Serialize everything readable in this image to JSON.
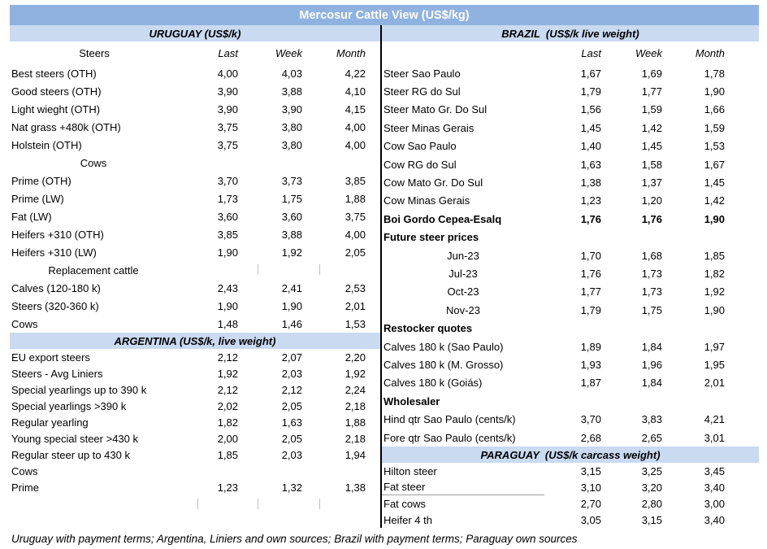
{
  "title": "Mercosur Cattle View (US$/kg)",
  "colors": {
    "title_bar": "#8FB2E0",
    "section_band": "#C9DAF1",
    "divider": "#000000",
    "title_text": "#FFFFFF"
  },
  "footer_note": "Uruguay with payment terms; Argentina, Liniers and own sources; Brazil with payment terms; Paraguay own sources",
  "left_column": [
    {
      "t": "band",
      "label": "URUGUAY (US$/k)"
    },
    {
      "t": "head",
      "label": "Steers",
      "v": [
        "Last",
        "Week",
        "Month"
      ]
    },
    {
      "t": "row",
      "label": "Best steers (OTH)",
      "v": [
        "4,00",
        "4,03",
        "4,22"
      ]
    },
    {
      "t": "row",
      "label": "Good steers (OTH)",
      "v": [
        "3,90",
        "3,88",
        "4,10"
      ]
    },
    {
      "t": "row",
      "label": "Light wieght (OTH)",
      "v": [
        "3,90",
        "3,90",
        "4,15"
      ]
    },
    {
      "t": "row",
      "label": "Nat grass +480k (OTH)",
      "v": [
        "3,75",
        "3,80",
        "4,00"
      ]
    },
    {
      "t": "row",
      "label": "Holstein (OTH)",
      "v": [
        "3,75",
        "3,80",
        "4,00"
      ]
    },
    {
      "t": "sub",
      "label": "Cows"
    },
    {
      "t": "row",
      "label": "Prime (OTH)",
      "v": [
        "3,70",
        "3,73",
        "3,85"
      ]
    },
    {
      "t": "row",
      "label": "Prime (LW)",
      "v": [
        "1,73",
        "1,75",
        "1,88"
      ]
    },
    {
      "t": "row",
      "label": "Fat (LW)",
      "v": [
        "3,60",
        "3,60",
        "3,75"
      ]
    },
    {
      "t": "row",
      "label": "Heifers +310 (OTH)",
      "v": [
        "3,85",
        "3,88",
        "4,00"
      ]
    },
    {
      "t": "row",
      "label": "Heifers +310 (LW)",
      "v": [
        "1,90",
        "1,92",
        "2,05"
      ]
    },
    {
      "t": "sub",
      "label": "Replacement cattle",
      "ticks": true
    },
    {
      "t": "row",
      "label": "Calves (120-180 k)",
      "v": [
        "2,43",
        "2,41",
        "2,53"
      ]
    },
    {
      "t": "row",
      "label": "Steers (320-360 k)",
      "v": [
        "1,90",
        "1,90",
        "2,01"
      ]
    },
    {
      "t": "row",
      "label": "Cows",
      "v": [
        "1,48",
        "1,46",
        "1,53"
      ]
    },
    {
      "t": "band",
      "label": "ARGENTINA (US$/k, live weight)"
    },
    {
      "t": "row",
      "label": "EU export steers",
      "v": [
        "2,12",
        "2,07",
        "2,20"
      ]
    },
    {
      "t": "row",
      "label": "Steers - Avg Liniers",
      "v": [
        "1,92",
        "2,03",
        "1,92"
      ]
    },
    {
      "t": "row",
      "label": "Special yearlings up to 390 k",
      "v": [
        "2,12",
        "2,12",
        "2,24"
      ]
    },
    {
      "t": "row",
      "label": "Special yearlings >390 k",
      "v": [
        "2,02",
        "2,05",
        "2,18"
      ]
    },
    {
      "t": "row",
      "label": "Regular yearling",
      "v": [
        "1,82",
        "1,63",
        "1,88"
      ]
    },
    {
      "t": "row",
      "label": "Young special steer >430 k",
      "v": [
        "2,00",
        "2,05",
        "2,18"
      ]
    },
    {
      "t": "row",
      "label": "Regular steer up to 430 k",
      "v": [
        "1,85",
        "2,03",
        "1,94"
      ]
    },
    {
      "t": "row",
      "label": "Cows",
      "v": [
        "",
        "",
        ""
      ]
    },
    {
      "t": "row",
      "label": "Prime",
      "v": [
        "1,23",
        "1,32",
        "1,38"
      ]
    },
    {
      "t": "ticksrow"
    }
  ],
  "right_column": [
    {
      "t": "band",
      "label": "BRAZIL  (US$/k live weight)"
    },
    {
      "t": "head",
      "label": "",
      "v": [
        "Last",
        "Week",
        "Month"
      ]
    },
    {
      "t": "row",
      "label": "Steer Sao Paulo",
      "v": [
        "1,67",
        "1,69",
        "1,78"
      ]
    },
    {
      "t": "row",
      "label": "Steer RG do Sul",
      "v": [
        "1,79",
        "1,77",
        "1,90"
      ]
    },
    {
      "t": "row",
      "label": "Steer Mato Gr. Do Sul",
      "v": [
        "1,56",
        "1,59",
        "1,66"
      ]
    },
    {
      "t": "row",
      "label": "Steer Minas Gerais",
      "v": [
        "1,45",
        "1,42",
        "1,59"
      ]
    },
    {
      "t": "row",
      "label": "Cow Sao Paulo",
      "v": [
        "1,40",
        "1,45",
        "1,53"
      ]
    },
    {
      "t": "row",
      "label": "Cow RG do Sul",
      "v": [
        "1,63",
        "1,58",
        "1,67"
      ]
    },
    {
      "t": "row",
      "label": "Cow Mato Gr. Do Sul",
      "v": [
        "1,38",
        "1,37",
        "1,45"
      ]
    },
    {
      "t": "row",
      "label": "Cow Minas Gerais",
      "v": [
        "1,23",
        "1,20",
        "1,42"
      ]
    },
    {
      "t": "row",
      "label": "Boi Gordo Cepea-Esalq",
      "v": [
        "1,76",
        "1,76",
        "1,90"
      ],
      "bold": true
    },
    {
      "t": "row",
      "label": "Future steer prices",
      "v": [
        "",
        "",
        ""
      ],
      "bold": true
    },
    {
      "t": "crow",
      "label": "Jun-23",
      "v": [
        "1,70",
        "1,68",
        "1,85"
      ]
    },
    {
      "t": "crow",
      "label": "Jul-23",
      "v": [
        "1,76",
        "1,73",
        "1,82"
      ]
    },
    {
      "t": "crow",
      "label": "Oct-23",
      "v": [
        "1,77",
        "1,73",
        "1,92"
      ]
    },
    {
      "t": "crow",
      "label": "Nov-23",
      "v": [
        "1,79",
        "1,75",
        "1,90"
      ]
    },
    {
      "t": "row",
      "label": "Restocker quotes",
      "v": [
        "",
        "",
        ""
      ],
      "bold": true
    },
    {
      "t": "row",
      "label": "Calves 180 k (Sao Paulo)",
      "v": [
        "1,89",
        "1,84",
        "1,97"
      ]
    },
    {
      "t": "row",
      "label": "Calves 180 k (M. Grosso)",
      "v": [
        "1,93",
        "1,96",
        "1,95"
      ]
    },
    {
      "t": "row",
      "label": "Calves 180 k (Goiás)",
      "v": [
        "1,87",
        "1,84",
        "2,01"
      ]
    },
    {
      "t": "row",
      "label": "Wholesaler",
      "v": [
        "",
        "",
        ""
      ],
      "bold": true
    },
    {
      "t": "row",
      "label": "Hind qtr Sao Paulo (cents/k)",
      "v": [
        "3,70",
        "3,83",
        "4,21"
      ]
    },
    {
      "t": "row",
      "label": "Fore qtr Sao Paulo (cents/k)",
      "v": [
        "2,68",
        "2,65",
        "3,01"
      ]
    },
    {
      "t": "band",
      "label": "PARAGUAY  (US$/k carcass weight)"
    },
    {
      "t": "row",
      "label": "Hilton steer",
      "v": [
        "3,15",
        "3,25",
        "3,45"
      ]
    },
    {
      "t": "row",
      "label": "Fat steer",
      "v": [
        "3,10",
        "3,20",
        "3,40"
      ],
      "underline": true
    },
    {
      "t": "row",
      "label": "Fat cows",
      "v": [
        "2,70",
        "2,80",
        "3,00"
      ]
    },
    {
      "t": "row",
      "label": "Heifer 4 th",
      "v": [
        "3,05",
        "3,15",
        "3,40"
      ]
    }
  ]
}
